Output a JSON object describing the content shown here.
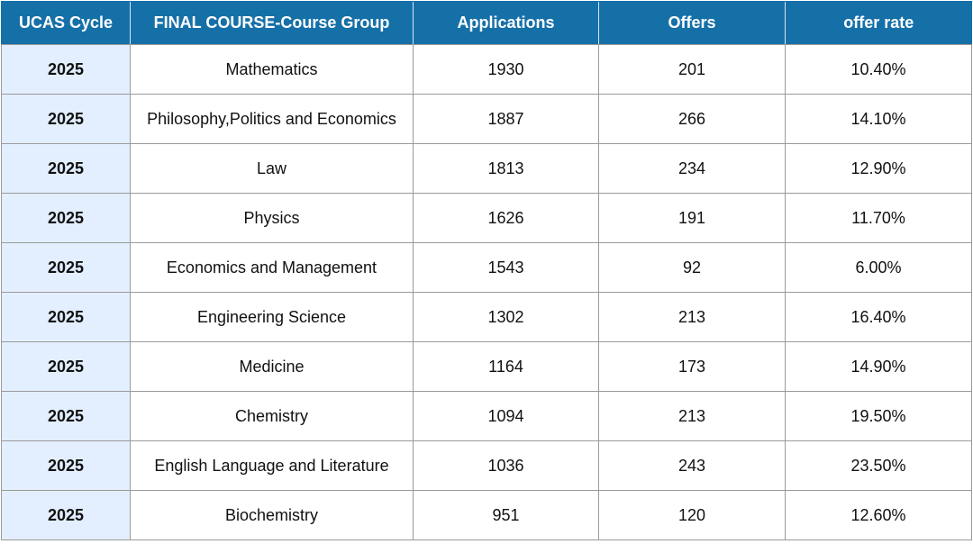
{
  "table": {
    "headers": [
      "UCAS Cycle",
      "FINAL COURSE-Course Group",
      "Applications",
      "Offers",
      "offer rate"
    ],
    "rows": [
      [
        "2025",
        "Mathematics",
        "1930",
        "201",
        "10.40%"
      ],
      [
        "2025",
        "Philosophy,Politics and Economics",
        "1887",
        "266",
        "14.10%"
      ],
      [
        "2025",
        "Law",
        "1813",
        "234",
        "12.90%"
      ],
      [
        "2025",
        "Physics",
        "1626",
        "191",
        "11.70%"
      ],
      [
        "2025",
        "Economics and Management",
        "1543",
        "92",
        "6.00%"
      ],
      [
        "2025",
        "Engineering Science",
        "1302",
        "213",
        "16.40%"
      ],
      [
        "2025",
        "Medicine",
        "1164",
        "173",
        "14.90%"
      ],
      [
        "2025",
        "Chemistry",
        "1094",
        "213",
        "19.50%"
      ],
      [
        "2025",
        "English Language and Literature",
        "1036",
        "243",
        "23.50%"
      ],
      [
        "2025",
        "Biochemistry",
        "951",
        "120",
        "12.60%"
      ]
    ]
  },
  "colors": {
    "header_bg": "#1670a8",
    "header_text": "#ffffff",
    "first_column_bg": "#e3efff",
    "border": "#9a9a9a"
  }
}
